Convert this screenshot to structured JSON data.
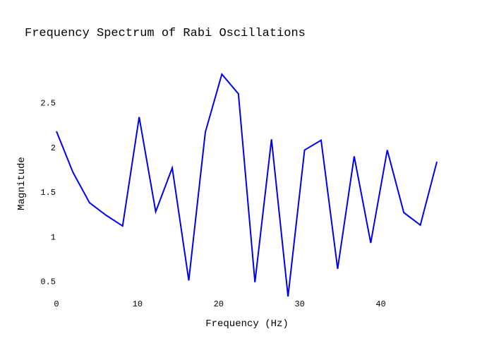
{
  "chart_data": {
    "type": "line",
    "title": "Frequency Spectrum of Rabi Oscillations",
    "xlabel": "Frequency (Hz)",
    "ylabel": "Magnitude",
    "xlim": [
      0,
      47
    ],
    "ylim": [
      0.33,
      2.86
    ],
    "x_ticks": [
      0,
      10,
      20,
      30,
      40
    ],
    "x_tick_labels": [
      "0",
      "10",
      "20",
      "30",
      "40"
    ],
    "y_ticks": [
      0.5,
      1,
      1.5,
      2,
      2.5
    ],
    "y_tick_labels": [
      "0.5",
      "1",
      "1.5",
      "2",
      "2.5"
    ],
    "grid": false,
    "series": [
      {
        "color": "#0000ee",
        "x": [
          0,
          2.04,
          4.08,
          6.12,
          8.16,
          10.2,
          12.24,
          14.28,
          16.32,
          18.36,
          20.4,
          22.44,
          24.48,
          26.52,
          28.56,
          30.6,
          32.64,
          34.68,
          36.72,
          38.76,
          40.8,
          42.84,
          44.88,
          46.92
        ],
        "y": [
          2.18,
          1.72,
          1.38,
          1.24,
          1.12,
          2.34,
          1.28,
          1.77,
          0.51,
          2.17,
          2.82,
          2.6,
          0.49,
          2.09,
          0.33,
          1.97,
          2.08,
          0.64,
          1.9,
          0.93,
          1.97,
          1.27,
          1.13,
          1.84
        ]
      }
    ]
  }
}
